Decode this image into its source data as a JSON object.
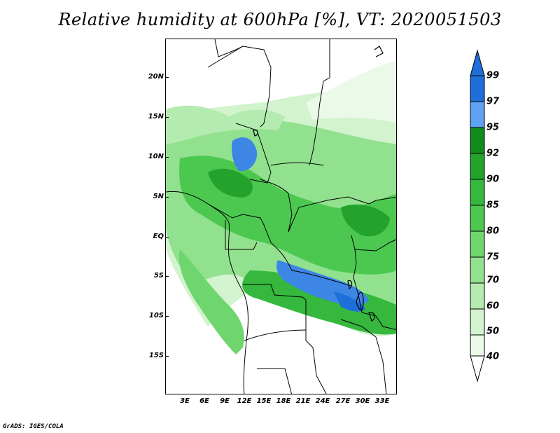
{
  "title": "Relative humidity at 600hPa [%], VT: 2020051503",
  "credit": "GrADS: IGES/COLA",
  "map": {
    "lat_labels": [
      "20N",
      "15N",
      "10N",
      "5N",
      "EQ",
      "5S",
      "10S",
      "15S"
    ],
    "lon_labels": [
      "3E",
      "6E",
      "9E",
      "12E",
      "15E",
      "18E",
      "21E",
      "24E",
      "27E",
      "30E",
      "33E"
    ],
    "lat_range": [
      -20,
      24
    ],
    "lon_range": [
      0,
      35
    ]
  },
  "colorbar": {
    "labels": [
      "99",
      "97",
      "95",
      "92",
      "90",
      "85",
      "80",
      "75",
      "70",
      "60",
      "50",
      "40"
    ],
    "colors": [
      "#1e6fd9",
      "#3d86e6",
      "#5ea2f0",
      "#0f8c1a",
      "#23a32c",
      "#35b83d",
      "#4cc850",
      "#6fd66f",
      "#92e18f",
      "#b4ebb0",
      "#d2f3ce",
      "#ebfae8"
    ],
    "units": "%"
  }
}
